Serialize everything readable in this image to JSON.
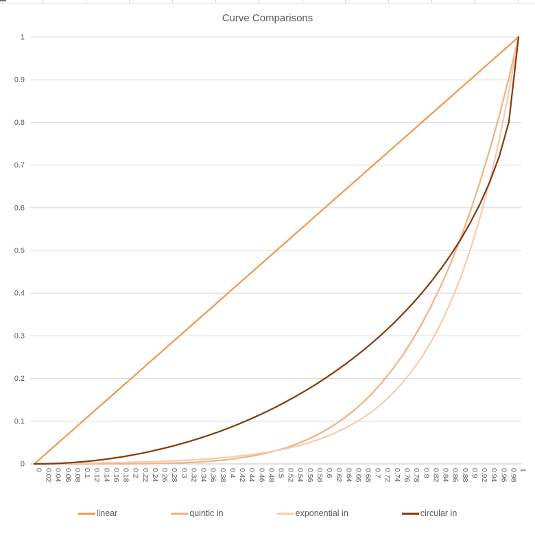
{
  "chart_data": {
    "type": "line",
    "title": "Curve Comparisons",
    "xlabel": "",
    "ylabel": "",
    "ylim": [
      0,
      1
    ],
    "grid": "horizontal",
    "legend_position": "bottom",
    "y_ticks": [
      "0",
      "0.1",
      "0.2",
      "0.3",
      "0.4",
      "0.5",
      "0.6",
      "0.7",
      "0.8",
      "0.9",
      "1"
    ],
    "x_categories": [
      "0",
      "0.02",
      "0.04",
      "0.06",
      "0.08",
      "0.1",
      "0.12",
      "0.14",
      "0.16",
      "0.18",
      "0.2",
      "0.22",
      "0.24",
      "0.26",
      "0.28",
      "0.3",
      "0.32",
      "0.34",
      "0.36",
      "0.38",
      "0.4",
      "0.42",
      "0.44",
      "0.46",
      "0.48",
      "0.5",
      "0.52",
      "0.54",
      "0.56",
      "0.58",
      "0.6",
      "0.62",
      "0.64",
      "0.66",
      "0.68",
      "0.7",
      "0.72",
      "0.74",
      "0.76",
      "0.78",
      "0.8",
      "0.82",
      "0.84",
      "0.86",
      "0.88",
      "0.9",
      "0.92",
      "0.94",
      "0.96",
      "0.98",
      "1"
    ],
    "series": [
      {
        "name": "linear",
        "color": "#EF9A52",
        "values": [
          0,
          0.02,
          0.04,
          0.06,
          0.08,
          0.1,
          0.12,
          0.14,
          0.16,
          0.18,
          0.2,
          0.22,
          0.24,
          0.26,
          0.28,
          0.3,
          0.32,
          0.34,
          0.36,
          0.38,
          0.4,
          0.42,
          0.44,
          0.46,
          0.48,
          0.5,
          0.52,
          0.54,
          0.56,
          0.58,
          0.6,
          0.62,
          0.64,
          0.66,
          0.68,
          0.7,
          0.72,
          0.74,
          0.76,
          0.78,
          0.8,
          0.82,
          0.84,
          0.86,
          0.88,
          0.9,
          0.92,
          0.94,
          0.96,
          0.98,
          1
        ]
      },
      {
        "name": "quintic in",
        "color": "#F4B183",
        "values": [
          0,
          0,
          0,
          0,
          0,
          0,
          0,
          0.0001,
          0.0001,
          0.0002,
          0.0003,
          0.0005,
          0.0008,
          0.0012,
          0.0017,
          0.0024,
          0.0034,
          0.0045,
          0.006,
          0.0079,
          0.0102,
          0.0131,
          0.0165,
          0.0206,
          0.0255,
          0.0313,
          0.038,
          0.0459,
          0.0551,
          0.0656,
          0.0778,
          0.0916,
          0.1074,
          0.1252,
          0.1454,
          0.1681,
          0.1935,
          0.2219,
          0.2536,
          0.2887,
          0.3277,
          0.3707,
          0.4182,
          0.4704,
          0.5277,
          0.5905,
          0.6591,
          0.7339,
          0.8154,
          0.9039,
          1
        ]
      },
      {
        "name": "exponential in",
        "color": "#F8CBAD",
        "values": [
          0.001,
          0.0011,
          0.0013,
          0.0015,
          0.0017,
          0.002,
          0.0022,
          0.0026,
          0.003,
          0.0034,
          0.0039,
          0.0045,
          0.0052,
          0.0059,
          0.0068,
          0.0078,
          0.009,
          0.0103,
          0.0118,
          0.0136,
          0.0156,
          0.018,
          0.0206,
          0.0237,
          0.0272,
          0.0313,
          0.0359,
          0.0412,
          0.0474,
          0.0544,
          0.0625,
          0.0718,
          0.0825,
          0.0948,
          0.1089,
          0.125,
          0.1436,
          0.165,
          0.1895,
          0.2177,
          0.25,
          0.2872,
          0.33,
          0.3791,
          0.4355,
          0.5,
          0.5744,
          0.66,
          0.7581,
          0.8709,
          1
        ]
      },
      {
        "name": "circular in",
        "color": "#843C0C",
        "values": [
          0,
          0.0002,
          0.0008,
          0.0018,
          0.0032,
          0.005,
          0.0072,
          0.0098,
          0.0129,
          0.0163,
          0.0202,
          0.0245,
          0.0293,
          0.0345,
          0.04,
          0.0461,
          0.0526,
          0.0596,
          0.067,
          0.075,
          0.0835,
          0.0925,
          0.102,
          0.1121,
          0.1227,
          0.134,
          0.1458,
          0.1583,
          0.1715,
          0.1854,
          0.2,
          0.2154,
          0.2316,
          0.2487,
          0.2668,
          0.2859,
          0.306,
          0.3274,
          0.3501,
          0.3742,
          0.4,
          0.4276,
          0.4574,
          0.4897,
          0.525,
          0.5641,
          0.6081,
          0.6588,
          0.72,
          0.801,
          1
        ]
      }
    ],
    "colors": {
      "text": "#595959",
      "gridline": "#D9D9D9",
      "axis_line": "#BFBFBF",
      "background": "#FFFFFF"
    }
  }
}
